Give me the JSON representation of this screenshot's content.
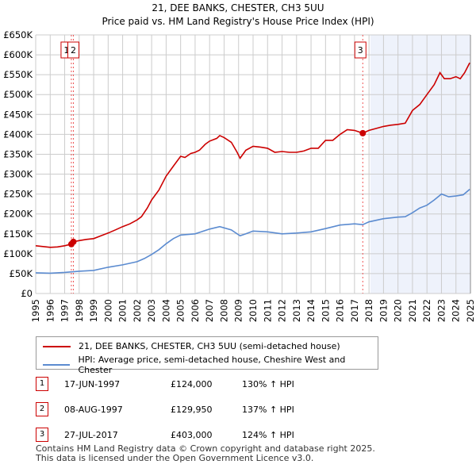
{
  "title_line1": "21, DEE BANKS, CHESTER, CH3 5UU",
  "title_line2": "Price paid vs. HM Land Registry's House Price Index (HPI)",
  "chart_data": {
    "type": "line",
    "title": "21, DEE BANKS, CHESTER, CH3 5UU — Price paid vs. HM Land Registry's House Price Index (HPI)",
    "xlim": [
      1995,
      2025
    ],
    "ylim": [
      0,
      650000
    ],
    "x_ticks": [
      "1995",
      "1996",
      "1997",
      "1998",
      "1999",
      "2000",
      "2001",
      "2002",
      "2003",
      "2004",
      "2005",
      "2006",
      "2007",
      "2008",
      "2009",
      "2010",
      "2011",
      "2012",
      "2013",
      "2014",
      "2015",
      "2016",
      "2017",
      "2018",
      "2019",
      "2020",
      "2021",
      "2022",
      "2023",
      "2024",
      "2025"
    ],
    "y_ticks": [
      "£0",
      "£50K",
      "£100K",
      "£150K",
      "£200K",
      "£250K",
      "£300K",
      "£350K",
      "£400K",
      "£450K",
      "£500K",
      "£550K",
      "£600K",
      "£650K"
    ],
    "grid": true,
    "series": [
      {
        "name": "21, DEE BANKS, CHESTER, CH3 5UU (semi-detached house)",
        "color": "#cc0000",
        "x": [
          1995,
          1995.5,
          1996,
          1996.5,
          1997,
          1997.46,
          1997.6,
          1998,
          1998.5,
          1999,
          1999.5,
          2000,
          2000.5,
          2001,
          2001.5,
          2002,
          2002.3,
          2002.7,
          2003,
          2003.5,
          2004,
          2004.5,
          2005,
          2005.3,
          2005.7,
          2006,
          2006.3,
          2006.7,
          2007,
          2007.5,
          2007.7,
          2008,
          2008.5,
          2008.9,
          2009.1,
          2009.5,
          2010,
          2010.5,
          2011,
          2011.5,
          2012,
          2012.5,
          2013,
          2013.5,
          2014,
          2014.5,
          2015,
          2015.5,
          2016,
          2016.5,
          2017,
          2017.57,
          2018,
          2018.5,
          2019,
          2019.5,
          2020,
          2020.5,
          2021,
          2021.5,
          2022,
          2022.5,
          2022.9,
          2023.2,
          2023.6,
          2024,
          2024.3,
          2024.6,
          2024.95
        ],
        "y": [
          120000,
          118000,
          116000,
          117000,
          120000,
          124000,
          130000,
          133000,
          136000,
          138000,
          145000,
          152000,
          160000,
          168000,
          175000,
          185000,
          193000,
          215000,
          235000,
          260000,
          295000,
          320000,
          345000,
          342000,
          352000,
          355000,
          360000,
          375000,
          383000,
          390000,
          397000,
          392000,
          380000,
          355000,
          340000,
          360000,
          370000,
          368000,
          365000,
          355000,
          357000,
          355000,
          355000,
          358000,
          365000,
          365000,
          385000,
          385000,
          400000,
          412000,
          410000,
          403000,
          410000,
          415000,
          420000,
          423000,
          425000,
          428000,
          460000,
          475000,
          500000,
          525000,
          555000,
          540000,
          540000,
          545000,
          540000,
          555000,
          580000
        ]
      },
      {
        "name": "HPI: Average price, semi-detached house, Cheshire West and Chester",
        "color": "#5b8bd0",
        "x": [
          1995,
          1996,
          1997,
          1998,
          1999,
          2000,
          2001,
          2002,
          2002.5,
          2003,
          2003.5,
          2004,
          2004.5,
          2005,
          2006,
          2007,
          2007.7,
          2008.5,
          2009.1,
          2009.5,
          2010,
          2011,
          2012,
          2013,
          2014,
          2015,
          2016,
          2017,
          2017.57,
          2018,
          2019,
          2020,
          2020.5,
          2021,
          2021.5,
          2022,
          2022.5,
          2023,
          2023.5,
          2024,
          2024.5,
          2024.95
        ],
        "y": [
          52000,
          51000,
          53000,
          56000,
          58000,
          66000,
          72000,
          80000,
          88000,
          98000,
          110000,
          125000,
          138000,
          147000,
          150000,
          162000,
          168000,
          160000,
          145000,
          150000,
          157000,
          155000,
          150000,
          152000,
          155000,
          163000,
          172000,
          175000,
          173000,
          180000,
          188000,
          192000,
          193000,
          203000,
          215000,
          222000,
          235000,
          250000,
          243000,
          245000,
          248000,
          262000
        ]
      }
    ],
    "sales": [
      {
        "n": "1",
        "x": 1997.46,
        "y": 124000
      },
      {
        "n": "2",
        "x": 1997.6,
        "y": 129950
      },
      {
        "n": "3",
        "x": 2017.57,
        "y": 403000
      }
    ],
    "shaded_from": 2018.1
  },
  "legend": {
    "red": "21, DEE BANKS, CHESTER, CH3 5UU (semi-detached house)",
    "blue": "HPI: Average price, semi-detached house, Cheshire West and Chester"
  },
  "table": [
    {
      "n": "1",
      "date": "17-JUN-1997",
      "price": "£124,000",
      "hpi": "130% ↑ HPI"
    },
    {
      "n": "2",
      "date": "08-AUG-1997",
      "price": "£129,950",
      "hpi": "137% ↑ HPI"
    },
    {
      "n": "3",
      "date": "27-JUL-2017",
      "price": "£403,000",
      "hpi": "124% ↑ HPI"
    }
  ],
  "footer1": "Contains HM Land Registry data © Crown copyright and database right 2025.",
  "footer2": "This data is licensed under the Open Government Licence v3.0."
}
